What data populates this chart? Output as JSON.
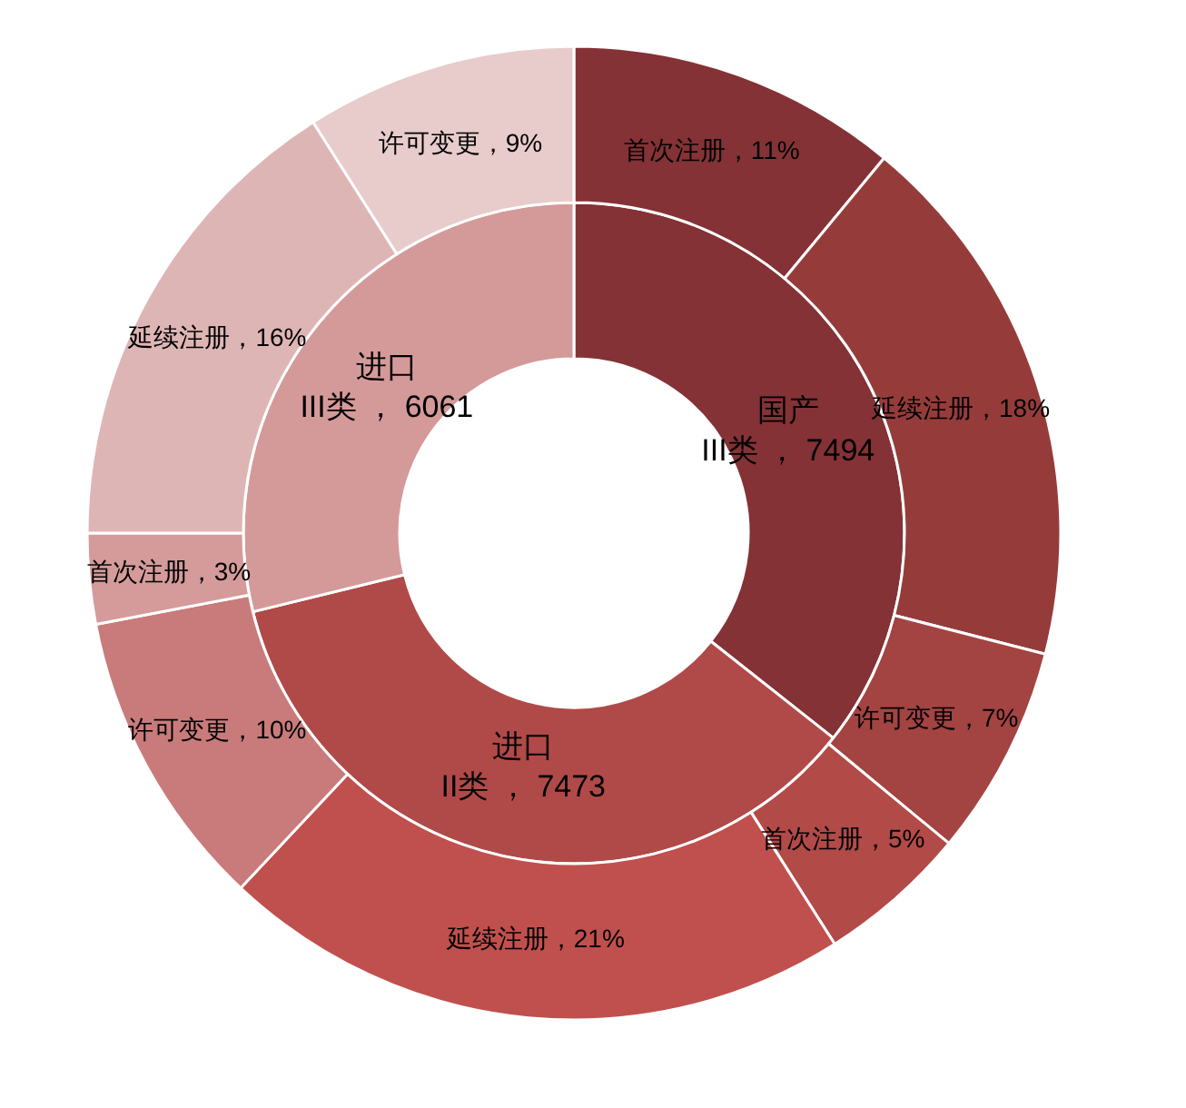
{
  "chart_data": [
    {
      "type": "donut",
      "categories": [
        "国产\nIII类",
        "进口\nII类",
        "进口\nIII类"
      ],
      "values": [
        7494,
        7473,
        6061
      ],
      "colors": [
        "#843235",
        "#b04a48",
        "#d49a99"
      ],
      "value_labels": [
        "7494",
        "7473",
        "6061"
      ]
    },
    {
      "type": "donut",
      "categories": [
        "首次注册",
        "延续注册",
        "许可变更",
        "首次注册",
        "延续注册",
        "许可变更",
        "首次注册",
        "延续注册",
        "许可变更"
      ],
      "values": [
        11,
        18,
        7,
        5,
        21,
        10,
        3,
        16,
        9
      ],
      "colors": [
        "#843235",
        "#953c3b",
        "#a34342",
        "#b24a48",
        "#c0504d",
        "#c87b7a",
        "#d49b9a",
        "#deb5b5",
        "#e8cbcb"
      ],
      "value_labels": [
        "11%",
        "18%",
        "7%",
        "5%",
        "21%",
        "10%",
        "3%",
        "16%",
        "9%"
      ]
    }
  ]
}
